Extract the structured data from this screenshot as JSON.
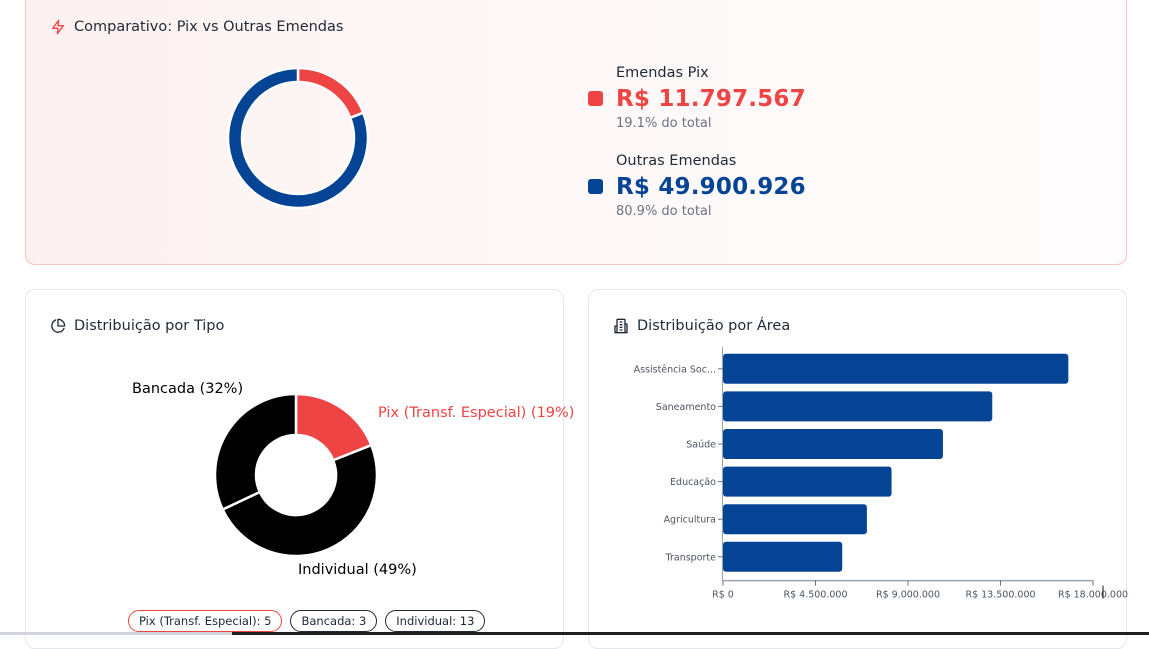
{
  "comparativo": {
    "title": "Comparativo: Pix vs Outras Emendas",
    "icon": "lightning-icon",
    "items": [
      {
        "label": "Emendas Pix",
        "value": "R$ 11.797.567",
        "pct_text": "19.1% do total",
        "pct": 19.1,
        "color": "#ef4444"
      },
      {
        "label": "Outras Emendas",
        "value": "R$ 49.900.926",
        "pct_text": "80.9% do total",
        "pct": 80.9,
        "color": "#054494"
      }
    ]
  },
  "tipo": {
    "title": "Distribuição por Tipo",
    "icon": "pie-chart-icon",
    "badges": [
      {
        "label": "Pix (Transf. Especial): 5",
        "kind": "pix"
      },
      {
        "label": "Bancada: 3",
        "kind": "bancada"
      },
      {
        "label": "Individual: 13",
        "kind": "individual"
      }
    ]
  },
  "area": {
    "title": "Distribuição por Área",
    "icon": "building-icon"
  },
  "chart_data": [
    {
      "type": "pie",
      "title": "Comparativo: Pix vs Outras Emendas",
      "donut": true,
      "categories": [
        "Emendas Pix",
        "Outras Emendas"
      ],
      "values": [
        11797567,
        49900926
      ],
      "colors": [
        "#ef4444",
        "#054494"
      ]
    },
    {
      "type": "pie",
      "title": "Distribuição por Tipo",
      "donut": true,
      "categories": [
        "Pix (Transf. Especial)",
        "Individual",
        "Bancada"
      ],
      "values": [
        19,
        49,
        32
      ],
      "labels": [
        "Pix (Transf. Especial) (19%)",
        "Individual (49%)",
        "Bancada (32%)"
      ],
      "colors": [
        "#ef4444",
        "#000000",
        "#000000"
      ]
    },
    {
      "type": "bar",
      "orientation": "horizontal",
      "title": "Distribuição por Área",
      "categories": [
        "Assistência Soc...",
        "Saneamento",
        "Saúde",
        "Educação",
        "Agricultura",
        "Transporte"
      ],
      "values": [
        16800000,
        13100000,
        10700000,
        8200000,
        7000000,
        5800000
      ],
      "xlim": [
        0,
        18000000
      ],
      "xticks": [
        0,
        4500000,
        9000000,
        13500000,
        18000000
      ],
      "xtick_labels": [
        "R$ 0",
        "R$ 4.500.000",
        "R$ 9.000.000",
        "R$ 13.500.000",
        "R$ 18.000.000"
      ],
      "color": "#054494",
      "grid": false
    }
  ]
}
